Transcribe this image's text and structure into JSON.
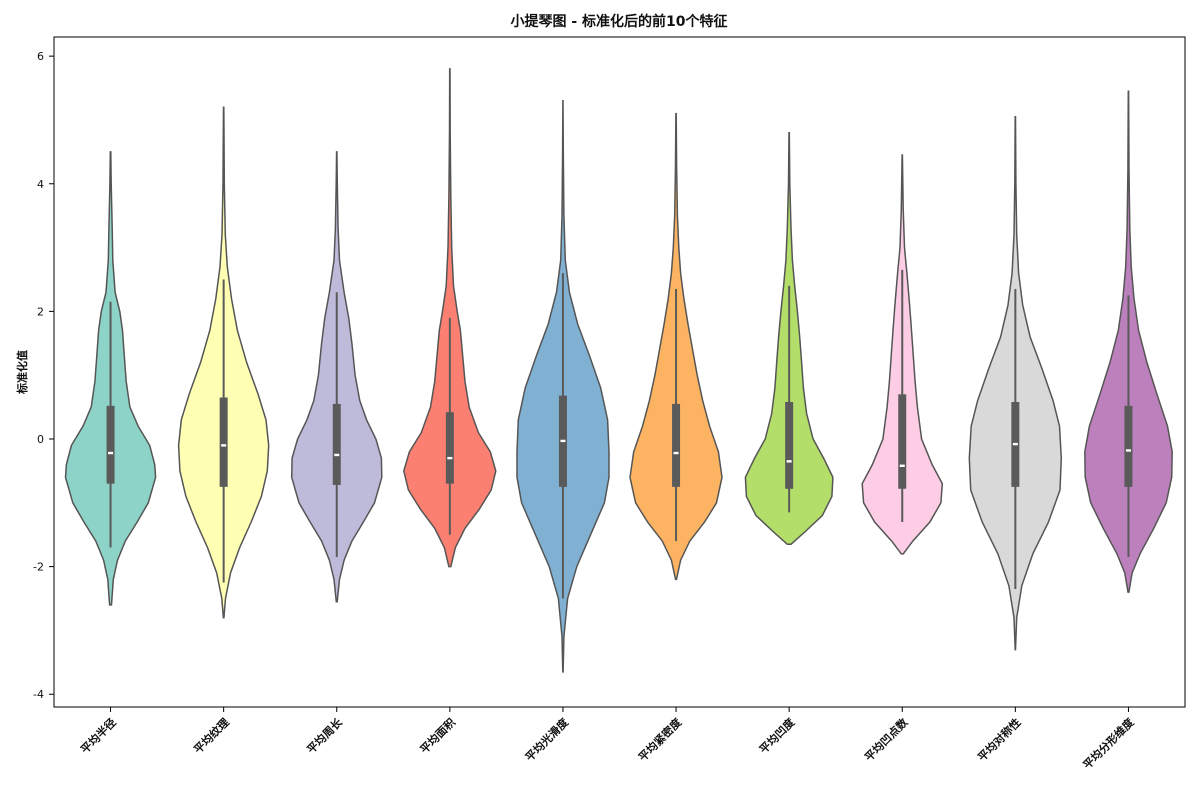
{
  "chart_data": {
    "type": "violin",
    "title": "小提琴图 - 标准化后的前10个特征",
    "ylabel": "标准化值",
    "xlabel": "",
    "ylim": [
      -4.2,
      6.3
    ],
    "yticks": [
      -4,
      -2,
      0,
      2,
      4,
      6
    ],
    "categories": [
      "平均半径",
      "平均纹理",
      "平均周长",
      "平均面积",
      "平均光滑度",
      "平均紧密度",
      "平均凹度",
      "平均凹点数",
      "平均对称性",
      "平均分形维度"
    ],
    "series": [
      {
        "min": -2.6,
        "max": 4.5,
        "q1": -0.7,
        "median": -0.22,
        "q3": 0.52,
        "whisker_low": -1.7,
        "whisker_high": 2.15,
        "color": "#8dd3c7",
        "shape": [
          [
            -2.6,
            0.02
          ],
          [
            -2.2,
            0.06
          ],
          [
            -1.9,
            0.15
          ],
          [
            -1.6,
            0.32
          ],
          [
            -1.3,
            0.58
          ],
          [
            -1.0,
            0.82
          ],
          [
            -0.6,
            0.98
          ],
          [
            -0.4,
            0.96
          ],
          [
            -0.1,
            0.85
          ],
          [
            0.2,
            0.6
          ],
          [
            0.5,
            0.42
          ],
          [
            0.9,
            0.34
          ],
          [
            1.3,
            0.3
          ],
          [
            1.7,
            0.26
          ],
          [
            2.0,
            0.2
          ],
          [
            2.3,
            0.1
          ],
          [
            2.8,
            0.05
          ],
          [
            3.3,
            0.035
          ],
          [
            4.0,
            0.015
          ],
          [
            4.5,
            0.005
          ]
        ]
      },
      {
        "min": -2.8,
        "max": 5.2,
        "q1": -0.75,
        "median": -0.1,
        "q3": 0.65,
        "whisker_low": -2.25,
        "whisker_high": 2.5,
        "color": "#ffffb3",
        "shape": [
          [
            -2.8,
            0.005
          ],
          [
            -2.5,
            0.04
          ],
          [
            -2.1,
            0.15
          ],
          [
            -1.7,
            0.35
          ],
          [
            -1.3,
            0.6
          ],
          [
            -0.9,
            0.82
          ],
          [
            -0.5,
            0.95
          ],
          [
            -0.1,
            0.98
          ],
          [
            0.3,
            0.92
          ],
          [
            0.7,
            0.75
          ],
          [
            1.2,
            0.5
          ],
          [
            1.7,
            0.3
          ],
          [
            2.2,
            0.17
          ],
          [
            2.7,
            0.08
          ],
          [
            3.2,
            0.035
          ],
          [
            4.0,
            0.015
          ],
          [
            4.8,
            0.008
          ],
          [
            5.2,
            0.003
          ]
        ]
      },
      {
        "min": -2.55,
        "max": 4.5,
        "q1": -0.72,
        "median": -0.25,
        "q3": 0.55,
        "whisker_low": -1.85,
        "whisker_high": 2.3,
        "color": "#bebada",
        "shape": [
          [
            -2.55,
            0.01
          ],
          [
            -2.2,
            0.06
          ],
          [
            -1.9,
            0.16
          ],
          [
            -1.6,
            0.33
          ],
          [
            -1.3,
            0.58
          ],
          [
            -1.0,
            0.82
          ],
          [
            -0.6,
            0.98
          ],
          [
            -0.3,
            0.97
          ],
          [
            0.0,
            0.85
          ],
          [
            0.3,
            0.65
          ],
          [
            0.6,
            0.5
          ],
          [
            1.0,
            0.4
          ],
          [
            1.5,
            0.33
          ],
          [
            1.9,
            0.26
          ],
          [
            2.3,
            0.16
          ],
          [
            2.8,
            0.06
          ],
          [
            3.3,
            0.03
          ],
          [
            4.0,
            0.012
          ],
          [
            4.5,
            0.004
          ]
        ]
      },
      {
        "min": -2.0,
        "max": 5.8,
        "q1": -0.7,
        "median": -0.3,
        "q3": 0.42,
        "whisker_low": -1.5,
        "whisker_high": 1.9,
        "color": "#fb8072",
        "shape": [
          [
            -2.0,
            0.02
          ],
          [
            -1.7,
            0.12
          ],
          [
            -1.4,
            0.33
          ],
          [
            -1.1,
            0.64
          ],
          [
            -0.8,
            0.9
          ],
          [
            -0.5,
            1.0
          ],
          [
            -0.2,
            0.88
          ],
          [
            0.1,
            0.62
          ],
          [
            0.5,
            0.42
          ],
          [
            0.9,
            0.33
          ],
          [
            1.3,
            0.28
          ],
          [
            1.7,
            0.23
          ],
          [
            2.0,
            0.16
          ],
          [
            2.4,
            0.08
          ],
          [
            3.0,
            0.04
          ],
          [
            3.8,
            0.02
          ],
          [
            4.8,
            0.008
          ],
          [
            5.8,
            0.003
          ]
        ]
      },
      {
        "min": -3.65,
        "max": 5.3,
        "q1": -0.75,
        "median": -0.03,
        "q3": 0.68,
        "whisker_low": -2.5,
        "whisker_high": 2.6,
        "color": "#80b1d3",
        "shape": [
          [
            -3.65,
            0.003
          ],
          [
            -3.1,
            0.02
          ],
          [
            -2.5,
            0.1
          ],
          [
            -2.0,
            0.3
          ],
          [
            -1.5,
            0.6
          ],
          [
            -1.0,
            0.9
          ],
          [
            -0.6,
            1.0
          ],
          [
            -0.2,
            1.0
          ],
          [
            0.3,
            0.97
          ],
          [
            0.8,
            0.82
          ],
          [
            1.3,
            0.58
          ],
          [
            1.8,
            0.32
          ],
          [
            2.3,
            0.14
          ],
          [
            2.8,
            0.05
          ],
          [
            3.5,
            0.02
          ],
          [
            4.5,
            0.008
          ],
          [
            5.3,
            0.002
          ]
        ]
      },
      {
        "min": -2.2,
        "max": 5.1,
        "q1": -0.75,
        "median": -0.22,
        "q3": 0.55,
        "whisker_low": -1.6,
        "whisker_high": 2.35,
        "color": "#fdb462",
        "shape": [
          [
            -2.2,
            0.01
          ],
          [
            -1.9,
            0.1
          ],
          [
            -1.6,
            0.3
          ],
          [
            -1.3,
            0.62
          ],
          [
            -1.0,
            0.88
          ],
          [
            -0.6,
            1.0
          ],
          [
            -0.2,
            0.92
          ],
          [
            0.2,
            0.73
          ],
          [
            0.6,
            0.58
          ],
          [
            1.0,
            0.46
          ],
          [
            1.4,
            0.36
          ],
          [
            1.8,
            0.26
          ],
          [
            2.2,
            0.17
          ],
          [
            2.6,
            0.1
          ],
          [
            3.0,
            0.06
          ],
          [
            3.5,
            0.03
          ],
          [
            4.3,
            0.012
          ],
          [
            5.1,
            0.004
          ]
        ]
      },
      {
        "min": -1.65,
        "max": 4.8,
        "q1": -0.78,
        "median": -0.35,
        "q3": 0.58,
        "whisker_low": -1.15,
        "whisker_high": 2.4,
        "color": "#b3de69",
        "shape": [
          [
            -1.65,
            0.04
          ],
          [
            -1.45,
            0.35
          ],
          [
            -1.2,
            0.72
          ],
          [
            -0.9,
            0.93
          ],
          [
            -0.6,
            0.95
          ],
          [
            -0.3,
            0.75
          ],
          [
            0.0,
            0.52
          ],
          [
            0.4,
            0.38
          ],
          [
            0.8,
            0.31
          ],
          [
            1.2,
            0.27
          ],
          [
            1.6,
            0.23
          ],
          [
            2.0,
            0.18
          ],
          [
            2.4,
            0.12
          ],
          [
            2.8,
            0.07
          ],
          [
            3.3,
            0.04
          ],
          [
            4.0,
            0.015
          ],
          [
            4.8,
            0.004
          ]
        ]
      },
      {
        "min": -1.8,
        "max": 4.45,
        "q1": -0.78,
        "median": -0.42,
        "q3": 0.7,
        "whisker_low": -1.3,
        "whisker_high": 2.65,
        "color": "#fccde5",
        "shape": [
          [
            -1.8,
            0.02
          ],
          [
            -1.6,
            0.23
          ],
          [
            -1.3,
            0.6
          ],
          [
            -1.0,
            0.84
          ],
          [
            -0.7,
            0.87
          ],
          [
            -0.4,
            0.65
          ],
          [
            0.0,
            0.42
          ],
          [
            0.5,
            0.33
          ],
          [
            0.9,
            0.28
          ],
          [
            1.3,
            0.24
          ],
          [
            1.7,
            0.2
          ],
          [
            2.1,
            0.16
          ],
          [
            2.6,
            0.1
          ],
          [
            3.0,
            0.05
          ],
          [
            3.6,
            0.02
          ],
          [
            4.45,
            0.004
          ]
        ]
      },
      {
        "min": -3.3,
        "max": 5.05,
        "q1": -0.75,
        "median": -0.08,
        "q3": 0.58,
        "whisker_low": -2.35,
        "whisker_high": 2.35,
        "color": "#d9d9d9",
        "shape": [
          [
            -3.3,
            0.004
          ],
          [
            -2.8,
            0.03
          ],
          [
            -2.3,
            0.14
          ],
          [
            -1.8,
            0.38
          ],
          [
            -1.3,
            0.72
          ],
          [
            -0.8,
            0.97
          ],
          [
            -0.3,
            1.0
          ],
          [
            0.2,
            0.96
          ],
          [
            0.6,
            0.82
          ],
          [
            1.1,
            0.58
          ],
          [
            1.6,
            0.32
          ],
          [
            2.1,
            0.16
          ],
          [
            2.6,
            0.07
          ],
          [
            3.2,
            0.03
          ],
          [
            4.0,
            0.012
          ],
          [
            5.05,
            0.003
          ]
        ]
      },
      {
        "min": -2.4,
        "max": 5.45,
        "q1": -0.75,
        "median": -0.18,
        "q3": 0.52,
        "whisker_low": -1.85,
        "whisker_high": 2.25,
        "color": "#bc80bd",
        "shape": [
          [
            -2.4,
            0.01
          ],
          [
            -2.1,
            0.08
          ],
          [
            -1.8,
            0.25
          ],
          [
            -1.4,
            0.55
          ],
          [
            -1.0,
            0.82
          ],
          [
            -0.6,
            0.94
          ],
          [
            -0.2,
            0.95
          ],
          [
            0.2,
            0.85
          ],
          [
            0.7,
            0.62
          ],
          [
            1.2,
            0.4
          ],
          [
            1.7,
            0.22
          ],
          [
            2.2,
            0.12
          ],
          [
            2.7,
            0.06
          ],
          [
            3.3,
            0.03
          ],
          [
            4.2,
            0.012
          ],
          [
            5.45,
            0.003
          ]
        ]
      }
    ]
  }
}
